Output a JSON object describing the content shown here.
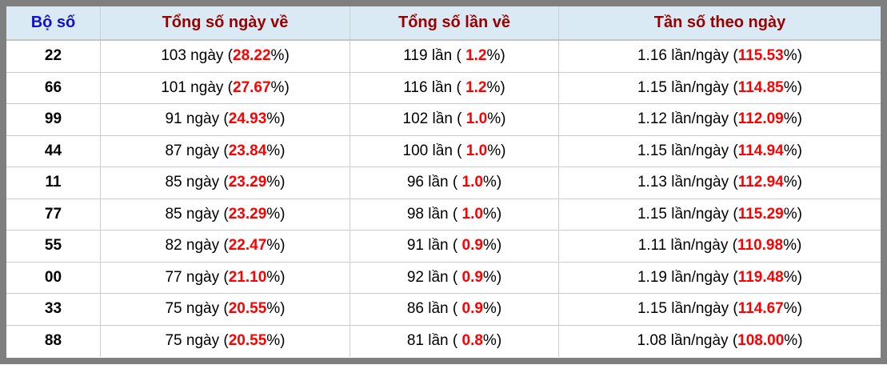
{
  "colors": {
    "frame": "#7f7f7f",
    "header_bg": "#daeaf4",
    "header_red": "#990000",
    "header_blue": "#1111cc",
    "value_red": "#ff0000",
    "grid_line": "#cccccc",
    "body_text": "#000000"
  },
  "table": {
    "headers": [
      {
        "label": "Bộ số"
      },
      {
        "label": "Tổng số ngày về"
      },
      {
        "label": "Tổng số lần về"
      },
      {
        "label": "Tần số theo ngày"
      }
    ],
    "rows": [
      {
        "pair": "22",
        "days_prefix": "103 ngày (",
        "days_pct": "28.22",
        "days_suffix": "%)",
        "times_prefix": "119 lần ( ",
        "times_pct": "1.2",
        "times_suffix": "%)",
        "freq_prefix": "1.16 lần/ngày (",
        "freq_pct": "115.53",
        "freq_suffix": "%)"
      },
      {
        "pair": "66",
        "days_prefix": "101 ngày (",
        "days_pct": "27.67",
        "days_suffix": "%)",
        "times_prefix": "116 lần ( ",
        "times_pct": "1.2",
        "times_suffix": "%)",
        "freq_prefix": "1.15 lần/ngày (",
        "freq_pct": "114.85",
        "freq_suffix": "%)"
      },
      {
        "pair": "99",
        "days_prefix": "91 ngày (",
        "days_pct": "24.93",
        "days_suffix": "%)",
        "times_prefix": "102 lần ( ",
        "times_pct": "1.0",
        "times_suffix": "%)",
        "freq_prefix": "1.12 lần/ngày (",
        "freq_pct": "112.09",
        "freq_suffix": "%)"
      },
      {
        "pair": "44",
        "days_prefix": "87 ngày (",
        "days_pct": "23.84",
        "days_suffix": "%)",
        "times_prefix": "100 lần ( ",
        "times_pct": "1.0",
        "times_suffix": "%)",
        "freq_prefix": "1.15 lần/ngày (",
        "freq_pct": "114.94",
        "freq_suffix": "%)"
      },
      {
        "pair": "11",
        "days_prefix": "85 ngày (",
        "days_pct": "23.29",
        "days_suffix": "%)",
        "times_prefix": "96 lần ( ",
        "times_pct": "1.0",
        "times_suffix": "%)",
        "freq_prefix": "1.13 lần/ngày (",
        "freq_pct": "112.94",
        "freq_suffix": "%)"
      },
      {
        "pair": "77",
        "days_prefix": "85 ngày (",
        "days_pct": "23.29",
        "days_suffix": "%)",
        "times_prefix": "98 lần ( ",
        "times_pct": "1.0",
        "times_suffix": "%)",
        "freq_prefix": "1.15 lần/ngày (",
        "freq_pct": "115.29",
        "freq_suffix": "%)"
      },
      {
        "pair": "55",
        "days_prefix": "82 ngày (",
        "days_pct": "22.47",
        "days_suffix": "%)",
        "times_prefix": "91 lần ( ",
        "times_pct": "0.9",
        "times_suffix": "%)",
        "freq_prefix": "1.11 lần/ngày (",
        "freq_pct": "110.98",
        "freq_suffix": "%)"
      },
      {
        "pair": "00",
        "days_prefix": "77 ngày (",
        "days_pct": "21.10",
        "days_suffix": "%)",
        "times_prefix": "92 lần ( ",
        "times_pct": "0.9",
        "times_suffix": "%)",
        "freq_prefix": "1.19 lần/ngày (",
        "freq_pct": "119.48",
        "freq_suffix": "%)"
      },
      {
        "pair": "33",
        "days_prefix": "75 ngày (",
        "days_pct": "20.55",
        "days_suffix": "%)",
        "times_prefix": "86 lần ( ",
        "times_pct": "0.9",
        "times_suffix": "%)",
        "freq_prefix": "1.15 lần/ngày (",
        "freq_pct": "114.67",
        "freq_suffix": "%)"
      },
      {
        "pair": "88",
        "days_prefix": "75 ngày (",
        "days_pct": "20.55",
        "days_suffix": "%)",
        "times_prefix": "81 lần ( ",
        "times_pct": "0.8",
        "times_suffix": "%)",
        "freq_prefix": "1.08 lần/ngày (",
        "freq_pct": "108.00",
        "freq_suffix": "%)"
      }
    ]
  }
}
